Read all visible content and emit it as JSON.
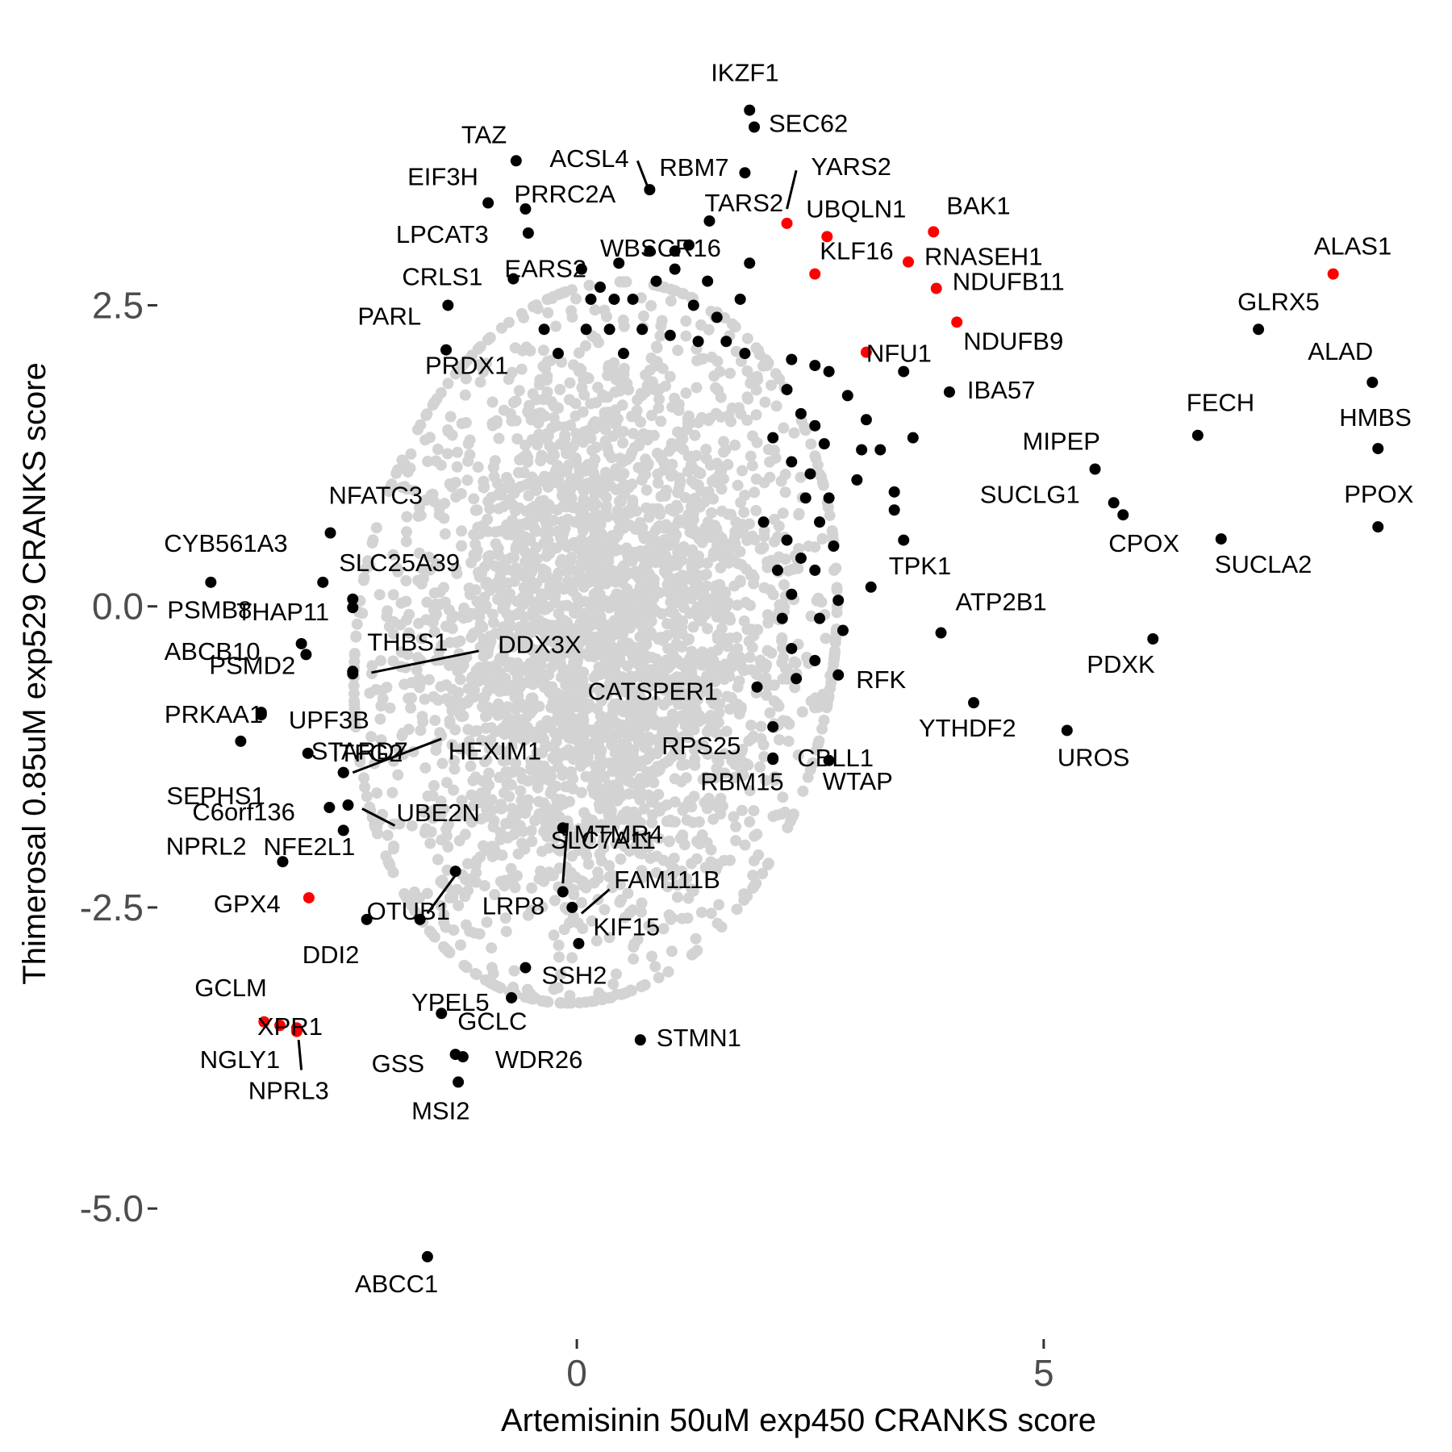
{
  "chart_data": {
    "type": "scatter",
    "xlabel": "Artemisinin 50uM exp450 CRANKS score",
    "ylabel": "Thimerosal 0.85uM exp529 CRANKS score",
    "xlim": [
      -4.45,
      9.2
    ],
    "ylim": [
      -5.95,
      4.7
    ],
    "x_ticks": [
      {
        "value": 0,
        "label": "0"
      },
      {
        "value": 5,
        "label": "5"
      }
    ],
    "y_ticks": [
      {
        "value": 2.5,
        "label": "2.5"
      },
      {
        "value": 0,
        "label": "0.0"
      },
      {
        "value": -2.5,
        "label": "-2.5"
      },
      {
        "value": -5,
        "label": "-5.0"
      }
    ],
    "grid": false,
    "colors": {
      "background": "#d3d3d3",
      "highlight": "#000000",
      "special": "#ff0000"
    },
    "background_cloud": {
      "center": [
        0.2,
        -0.3
      ],
      "sd": [
        1.15,
        1.15
      ]
    },
    "labeled_points": [
      {
        "label": "IKZF1",
        "x": 1.85,
        "y": 4.12,
        "color": "#000000"
      },
      {
        "label": "SEC62",
        "x": 1.9,
        "y": 3.98,
        "color": "#000000"
      },
      {
        "label": "TAZ",
        "x": -0.65,
        "y": 3.7,
        "color": "#000000"
      },
      {
        "label": "ACSL4",
        "x": 0.78,
        "y": 3.46,
        "color": "#000000"
      },
      {
        "label": "RBM7",
        "x": 1.8,
        "y": 3.6,
        "color": "#000000"
      },
      {
        "label": "YARS2",
        "x": 2.25,
        "y": 3.18,
        "color": "#ff0000"
      },
      {
        "label": "TARS2",
        "x": 1.42,
        "y": 3.2,
        "color": "#000000"
      },
      {
        "label": "EIF3H",
        "x": -0.95,
        "y": 3.35,
        "color": "#000000"
      },
      {
        "label": "PRRC2A",
        "x": -0.55,
        "y": 3.3,
        "color": "#000000"
      },
      {
        "label": "UBQLN1",
        "x": 2.68,
        "y": 3.07,
        "color": "#ff0000"
      },
      {
        "label": "BAK1",
        "x": 3.82,
        "y": 3.11,
        "color": "#ff0000"
      },
      {
        "label": "LPCAT3",
        "x": -0.52,
        "y": 3.1,
        "color": "#000000"
      },
      {
        "label": "WBSCR16",
        "x": 1.2,
        "y": 3.0,
        "color": "#000000"
      },
      {
        "label": "EARS2",
        "x": 0.78,
        "y": 2.95,
        "color": "#000000"
      },
      {
        "label": "RNASEH1",
        "x": 3.55,
        "y": 2.86,
        "color": "#ff0000"
      },
      {
        "label": "KLF16",
        "x": 2.55,
        "y": 2.76,
        "color": "#ff0000"
      },
      {
        "label": "ALAS1",
        "x": 8.1,
        "y": 2.76,
        "color": "#ff0000"
      },
      {
        "label": "CRLS1",
        "x": -0.68,
        "y": 2.72,
        "color": "#000000"
      },
      {
        "label": "NDUFB11",
        "x": 3.85,
        "y": 2.64,
        "color": "#ff0000"
      },
      {
        "label": "GLRX5",
        "x": 7.3,
        "y": 2.3,
        "color": "#000000"
      },
      {
        "label": "PARL",
        "x": -1.38,
        "y": 2.5,
        "color": "#000000"
      },
      {
        "label": "NDUFB9",
        "x": 4.07,
        "y": 2.36,
        "color": "#ff0000"
      },
      {
        "label": "NFU1",
        "x": 3.1,
        "y": 2.11,
        "color": "#ff0000"
      },
      {
        "label": "PRDX1",
        "x": -1.4,
        "y": 2.13,
        "color": "#000000"
      },
      {
        "label": "ALAD",
        "x": 8.52,
        "y": 1.86,
        "color": "#000000"
      },
      {
        "label": "IBA57",
        "x": 3.99,
        "y": 1.78,
        "color": "#000000"
      },
      {
        "label": "FECH",
        "x": 6.65,
        "y": 1.42,
        "color": "#000000"
      },
      {
        "label": "HMBS",
        "x": 8.58,
        "y": 1.31,
        "color": "#000000"
      },
      {
        "label": "MIPEP",
        "x": 5.55,
        "y": 1.14,
        "color": "#000000"
      },
      {
        "label": "SUCLG1",
        "x": 5.75,
        "y": 0.86,
        "color": "#000000"
      },
      {
        "label": "CPOX",
        "x": 5.85,
        "y": 0.76,
        "color": "#000000"
      },
      {
        "label": "PPOX",
        "x": 8.58,
        "y": 0.66,
        "color": "#000000"
      },
      {
        "label": "NFATC3",
        "x": -2.64,
        "y": 0.61,
        "color": "#000000"
      },
      {
        "label": "SUCLA2",
        "x": 6.9,
        "y": 0.56,
        "color": "#000000"
      },
      {
        "label": "CYB561A3",
        "x": -3.92,
        "y": 0.2,
        "color": "#000000"
      },
      {
        "label": "SLC25A39",
        "x": -2.72,
        "y": 0.2,
        "color": "#000000"
      },
      {
        "label": "TPK1",
        "x": 3.15,
        "y": 0.16,
        "color": "#000000"
      },
      {
        "label": "PSMB8",
        "x": -2.4,
        "y": 0.06,
        "color": "#000000"
      },
      {
        "label": "THAP11",
        "x": -2.4,
        "y": -0.01,
        "color": "#000000"
      },
      {
        "label": "ATP2B1",
        "x": 3.9,
        "y": -0.22,
        "color": "#000000"
      },
      {
        "label": "PDXK",
        "x": 6.17,
        "y": -0.27,
        "color": "#000000"
      },
      {
        "label": "ABCB10",
        "x": -2.95,
        "y": -0.31,
        "color": "#000000"
      },
      {
        "label": "THBS1",
        "x": -2.4,
        "y": -0.54,
        "color": "#000000"
      },
      {
        "label": "DDX3X",
        "x": -2.4,
        "y": -0.56,
        "color": "#000000"
      },
      {
        "label": "RFK",
        "x": 2.8,
        "y": -0.57,
        "color": "#000000"
      },
      {
        "label": "PSMD2",
        "x": -2.9,
        "y": -0.4,
        "color": "#000000"
      },
      {
        "label": "CATSPER1",
        "x": 1.93,
        "y": -0.67,
        "color": "#000000"
      },
      {
        "label": "UPF3B",
        "x": -3.38,
        "y": -0.88,
        "color": "#000000"
      },
      {
        "label": "PRKAA1",
        "x": -3.38,
        "y": -0.9,
        "color": "#000000"
      },
      {
        "label": "YTHDF2",
        "x": 4.25,
        "y": -0.8,
        "color": "#000000"
      },
      {
        "label": "UROS",
        "x": 5.25,
        "y": -1.03,
        "color": "#000000"
      },
      {
        "label": "SEPHS1",
        "x": -3.6,
        "y": -1.12,
        "color": "#000000"
      },
      {
        "label": "STARD7",
        "x": -2.5,
        "y": -1.38,
        "color": "#000000"
      },
      {
        "label": "HEXIM1",
        "x": -2.5,
        "y": -1.38,
        "color": "#000000"
      },
      {
        "label": "RPS25",
        "x": 2.1,
        "y": -1.0,
        "color": "#000000"
      },
      {
        "label": "CBLL1",
        "x": 2.1,
        "y": -1.26,
        "color": "#000000"
      },
      {
        "label": "ITFG2",
        "x": -2.88,
        "y": -1.22,
        "color": "#000000"
      },
      {
        "label": "WTAP",
        "x": 2.7,
        "y": -1.28,
        "color": "#000000"
      },
      {
        "label": "RBM15",
        "x": 2.1,
        "y": -1.27,
        "color": "#000000"
      },
      {
        "label": "C6orf136",
        "x": -2.65,
        "y": -1.67,
        "color": "#000000"
      },
      {
        "label": "UBE2N",
        "x": -2.45,
        "y": -1.65,
        "color": "#000000"
      },
      {
        "label": "MTMR4",
        "x": -0.15,
        "y": -1.84,
        "color": "#000000"
      },
      {
        "label": "NPRL2",
        "x": -2.5,
        "y": -1.86,
        "color": "#000000"
      },
      {
        "label": "NFE2L1",
        "x": -3.15,
        "y": -2.12,
        "color": "#000000"
      },
      {
        "label": "SLC7A11",
        "x": -1.3,
        "y": -2.2,
        "color": "#000000"
      },
      {
        "label": "FAM111B",
        "x": -0.05,
        "y": -2.5,
        "color": "#000000"
      },
      {
        "label": "GPX4",
        "x": -2.87,
        "y": -2.42,
        "color": "#ff0000"
      },
      {
        "label": "OTUB1",
        "x": -1.68,
        "y": -2.6,
        "color": "#000000"
      },
      {
        "label": "LRP8",
        "x": -0.15,
        "y": -2.37,
        "color": "#000000"
      },
      {
        "label": "KIF15",
        "x": 0.02,
        "y": -2.8,
        "color": "#000000"
      },
      {
        "label": "DDI2",
        "x": -2.25,
        "y": -2.6,
        "color": "#000000"
      },
      {
        "label": "SSH2",
        "x": -0.55,
        "y": -3.0,
        "color": "#000000"
      },
      {
        "label": "YPEL5",
        "x": -0.7,
        "y": -3.25,
        "color": "#000000"
      },
      {
        "label": "GCLC",
        "x": -1.45,
        "y": -3.38,
        "color": "#000000"
      },
      {
        "label": "GCLM",
        "x": -3.35,
        "y": -3.45,
        "color": "#ff0000"
      },
      {
        "label": "XPR1",
        "x": -3.18,
        "y": -3.48,
        "color": "#ff0000"
      },
      {
        "label": "NGLY1",
        "x": -3.0,
        "y": -3.5,
        "color": "#ff0000"
      },
      {
        "label": "STMN1",
        "x": 0.68,
        "y": -3.6,
        "color": "#000000"
      },
      {
        "label": "GSS",
        "x": -1.3,
        "y": -3.72,
        "color": "#000000"
      },
      {
        "label": "WDR26",
        "x": -1.22,
        "y": -3.74,
        "color": "#000000"
      },
      {
        "label": "NPRL3",
        "x": -3.0,
        "y": -3.53,
        "color": "#ff0000"
      },
      {
        "label": "MSI2",
        "x": -1.27,
        "y": -3.95,
        "color": "#000000"
      },
      {
        "label": "ABCC1",
        "x": -1.6,
        "y": -5.4,
        "color": "#000000"
      }
    ],
    "unlabeled_points": [
      {
        "x": 0.05,
        "y": 2.8
      },
      {
        "x": 0.25,
        "y": 2.65
      },
      {
        "x": 0.45,
        "y": 2.85
      },
      {
        "x": 0.6,
        "y": 2.55
      },
      {
        "x": 0.85,
        "y": 2.7
      },
      {
        "x": 1.05,
        "y": 2.8
      },
      {
        "x": 1.25,
        "y": 2.5
      },
      {
        "x": 1.4,
        "y": 2.7
      },
      {
        "x": 1.5,
        "y": 2.4
      },
      {
        "x": 1.75,
        "y": 2.55
      },
      {
        "x": 1.85,
        "y": 2.85
      },
      {
        "x": 0.1,
        "y": 2.3
      },
      {
        "x": 0.35,
        "y": 2.3
      },
      {
        "x": 0.7,
        "y": 2.3
      },
      {
        "x": 1.0,
        "y": 2.25
      },
      {
        "x": 1.3,
        "y": 2.2
      },
      {
        "x": 1.6,
        "y": 2.2
      },
      {
        "x": 1.8,
        "y": 2.1
      },
      {
        "x": -0.2,
        "y": 2.1
      },
      {
        "x": 0.5,
        "y": 2.1
      },
      {
        "x": 1.05,
        "y": 2.95
      },
      {
        "x": 0.4,
        "y": 2.55
      },
      {
        "x": -0.35,
        "y": 2.3
      },
      {
        "x": 0.15,
        "y": 2.55
      },
      {
        "x": 2.3,
        "y": 2.05
      },
      {
        "x": 2.55,
        "y": 2.0
      },
      {
        "x": 2.25,
        "y": 1.8
      },
      {
        "x": 2.4,
        "y": 1.6
      },
      {
        "x": 2.55,
        "y": 1.5
      },
      {
        "x": 2.65,
        "y": 1.35
      },
      {
        "x": 2.3,
        "y": 1.2
      },
      {
        "x": 2.5,
        "y": 1.1
      },
      {
        "x": 2.45,
        "y": 0.9
      },
      {
        "x": 2.6,
        "y": 0.7
      },
      {
        "x": 2.25,
        "y": 0.55
      },
      {
        "x": 2.4,
        "y": 0.4
      },
      {
        "x": 2.55,
        "y": 0.3
      },
      {
        "x": 2.3,
        "y": 0.1
      },
      {
        "x": 2.6,
        "y": -0.1
      },
      {
        "x": 2.3,
        "y": -0.35
      },
      {
        "x": 2.55,
        "y": -0.45
      },
      {
        "x": 2.35,
        "y": -0.6
      },
      {
        "x": 2.7,
        "y": 1.95
      },
      {
        "x": 2.9,
        "y": 1.75
      },
      {
        "x": 3.1,
        "y": 1.55
      },
      {
        "x": 3.05,
        "y": 1.3
      },
      {
        "x": 3.0,
        "y": 1.05
      },
      {
        "x": 3.4,
        "y": 0.95
      },
      {
        "x": 3.4,
        "y": 0.8
      },
      {
        "x": 3.5,
        "y": 0.55
      },
      {
        "x": 3.25,
        "y": 1.3
      },
      {
        "x": 2.8,
        "y": 0.05
      },
      {
        "x": 2.85,
        "y": -0.2
      },
      {
        "x": 3.6,
        "y": 1.4
      },
      {
        "x": 3.5,
        "y": 1.95
      },
      {
        "x": 2.1,
        "y": 1.4
      },
      {
        "x": 2.0,
        "y": 0.7
      },
      {
        "x": 2.7,
        "y": 0.9
      },
      {
        "x": 2.75,
        "y": 0.5
      },
      {
        "x": 2.15,
        "y": 0.3
      },
      {
        "x": 2.2,
        "y": -0.1
      }
    ],
    "leader_lines": [
      {
        "label": "ACSL4",
        "from": [
          0.65,
          3.7
        ],
        "to": [
          0.75,
          3.5
        ]
      },
      {
        "label": "YARS2",
        "from": [
          2.35,
          3.62
        ],
        "to": [
          2.25,
          3.3
        ]
      },
      {
        "label": "THBS1",
        "from": [
          -1.05,
          -0.37
        ],
        "to": [
          -2.2,
          -0.55
        ]
      },
      {
        "label": "HEXIM1",
        "from": [
          -1.45,
          -1.1
        ],
        "to": [
          -2.4,
          -1.38
        ]
      },
      {
        "label": "UBE2N",
        "from": [
          -1.95,
          -1.82
        ],
        "to": [
          -2.3,
          -1.68
        ]
      },
      {
        "label": "MTMR4",
        "from": [
          -0.1,
          -1.8
        ],
        "to": [
          -0.15,
          -2.3
        ]
      },
      {
        "label": "SLC7A11",
        "from": [
          -1.25,
          -2.18
        ],
        "to": [
          -1.6,
          -2.55
        ]
      },
      {
        "label": "FAM111B",
        "from": [
          0.35,
          -2.35
        ],
        "to": [
          0.05,
          -2.55
        ]
      },
      {
        "label": "NPRL3",
        "from": [
          -2.98,
          -3.6
        ],
        "to": [
          -2.95,
          -3.85
        ]
      }
    ]
  }
}
